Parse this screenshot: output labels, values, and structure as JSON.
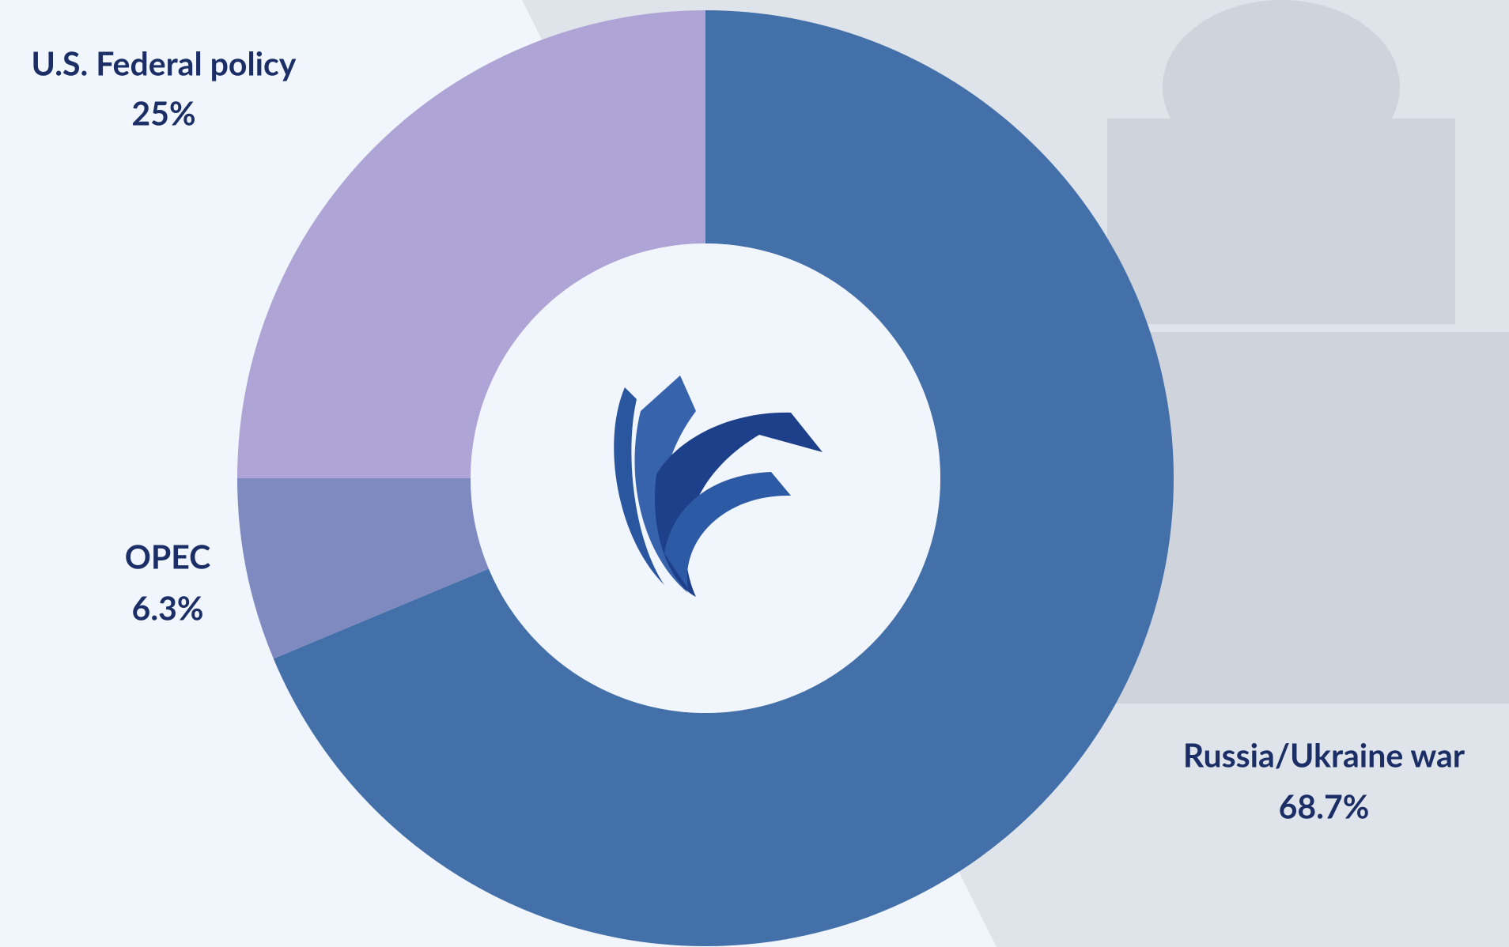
{
  "chart_data": {
    "type": "donut",
    "categories": [
      "Russia/Ukraine war",
      "OPEC",
      "U.S. Federal policy"
    ],
    "values": [
      68.7,
      6.3,
      25
    ],
    "value_labels": [
      "68.7%",
      "6.3%",
      "25%"
    ],
    "colors": [
      "#4470aa",
      "#7f8bc0",
      "#aea4d6"
    ]
  }
}
